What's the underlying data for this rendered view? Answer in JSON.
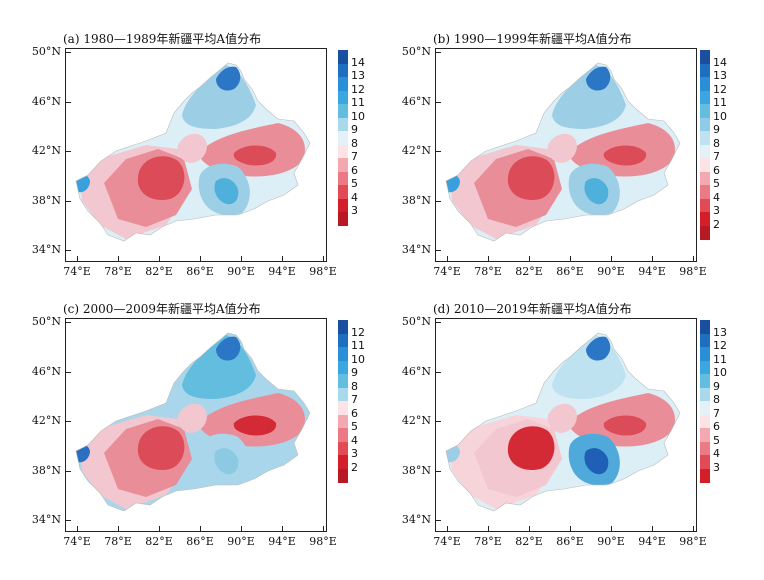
{
  "panels": [
    {
      "title": "(a) 1980—1989年新疆平均A值分布",
      "colorbar": {
        "labels": [
          "14",
          "13",
          "12",
          "11",
          "10",
          "9",
          "8",
          "7",
          "6",
          "5",
          "4",
          "3"
        ],
        "colors": [
          "#1a4fa0",
          "#1f6fc0",
          "#2a8fd6",
          "#3aa7e0",
          "#62bddf",
          "#a9d9ec",
          "#e4f1f8",
          "#fde2e6",
          "#f4a9b0",
          "#ea7b85",
          "#e24b56",
          "#d41e2a",
          "#b81a25"
        ]
      },
      "map": {
        "bg": "#dceef6",
        "blobs": [
          {
            "c": "#f2c7cf",
            "shape": "w"
          },
          {
            "c": "#e98e98",
            "shape": "wc"
          },
          {
            "c": "#dc4b58",
            "shape": "wcore"
          },
          {
            "c": "#e98e98",
            "shape": "e"
          },
          {
            "c": "#dc4b58",
            "shape": "ecore"
          },
          {
            "c": "#9ccfe6",
            "shape": "n"
          },
          {
            "c": "#2b77c6",
            "shape": "ncore"
          },
          {
            "c": "#9ccfe6",
            "shape": "s"
          },
          {
            "c": "#4fb0db",
            "shape": "score"
          },
          {
            "c": "#f2c7cf",
            "shape": "c"
          },
          {
            "c": "#3aa0dc",
            "shape": "wtip"
          }
        ]
      }
    },
    {
      "title": "(b) 1990—1999年新疆平均A值分布",
      "colorbar": {
        "labels": [
          "14",
          "13",
          "12",
          "11",
          "10",
          "9",
          "8",
          "7",
          "6",
          "5",
          "4",
          "3",
          "2"
        ],
        "colors": [
          "#1a4fa0",
          "#1f6fc0",
          "#2a8fd6",
          "#3aa7e0",
          "#62bddf",
          "#8fcbe6",
          "#bfe2f1",
          "#e4f1f8",
          "#fde2e6",
          "#f4a9b0",
          "#ea7b85",
          "#e24b56",
          "#d41e2a",
          "#b81a25"
        ]
      },
      "map": {
        "bg": "#dceef6",
        "blobs": [
          {
            "c": "#f2c7cf",
            "shape": "w"
          },
          {
            "c": "#e98e98",
            "shape": "wc"
          },
          {
            "c": "#dc4b58",
            "shape": "wcore"
          },
          {
            "c": "#e98e98",
            "shape": "e"
          },
          {
            "c": "#dc4b58",
            "shape": "ecore"
          },
          {
            "c": "#9ccfe6",
            "shape": "n"
          },
          {
            "c": "#2b77c6",
            "shape": "ncore"
          },
          {
            "c": "#9ccfe6",
            "shape": "s"
          },
          {
            "c": "#4fb0db",
            "shape": "score"
          },
          {
            "c": "#f2c7cf",
            "shape": "c"
          },
          {
            "c": "#3aa0dc",
            "shape": "wtip"
          }
        ]
      }
    },
    {
      "title": "(c) 2000—2009年新疆平均A值分布",
      "colorbar": {
        "labels": [
          "12",
          "11",
          "10",
          "9",
          "8",
          "7",
          "6",
          "5",
          "4",
          "3",
          "2"
        ],
        "colors": [
          "#1a4fa0",
          "#1f6fc0",
          "#2a8fd6",
          "#3aa7e0",
          "#62bddf",
          "#a9d9ec",
          "#fde2e6",
          "#f4a9b0",
          "#ea7b85",
          "#e24b56",
          "#d41e2a",
          "#b81a25"
        ]
      },
      "map": {
        "bg": "#a9d6ea",
        "blobs": [
          {
            "c": "#f2c7cf",
            "shape": "w"
          },
          {
            "c": "#e98e98",
            "shape": "wc"
          },
          {
            "c": "#dc4b58",
            "shape": "wcore"
          },
          {
            "c": "#e98e98",
            "shape": "e"
          },
          {
            "c": "#d42a35",
            "shape": "ecore"
          },
          {
            "c": "#62bddf",
            "shape": "n"
          },
          {
            "c": "#2b77c6",
            "shape": "ncore"
          },
          {
            "c": "#a9d6ea",
            "shape": "s"
          },
          {
            "c": "#8ccae4",
            "shape": "score"
          },
          {
            "c": "#f2c7cf",
            "shape": "c"
          },
          {
            "c": "#2b6fc0",
            "shape": "wtip"
          }
        ]
      }
    },
    {
      "title": "(d) 2010—2019年新疆平均A值分布",
      "colorbar": {
        "labels": [
          "13",
          "12",
          "11",
          "10",
          "9",
          "8",
          "7",
          "6",
          "5",
          "4",
          "3"
        ],
        "colors": [
          "#1a4fa0",
          "#1f6fc0",
          "#2a8fd6",
          "#3aa7e0",
          "#62bddf",
          "#a9d9ec",
          "#e4f1f8",
          "#fde2e6",
          "#f4a9b0",
          "#ea7b85",
          "#e24b56",
          "#d41e2a"
        ]
      },
      "map": {
        "bg": "#dceef6",
        "blobs": [
          {
            "c": "#f7d3da",
            "shape": "w"
          },
          {
            "c": "#f2c7cf",
            "shape": "wc"
          },
          {
            "c": "#d42a35",
            "shape": "wcore"
          },
          {
            "c": "#e98e98",
            "shape": "e"
          },
          {
            "c": "#dc4b58",
            "shape": "ecore"
          },
          {
            "c": "#bfe2f1",
            "shape": "n"
          },
          {
            "c": "#2b77c6",
            "shape": "ncore"
          },
          {
            "c": "#4fa9db",
            "shape": "s"
          },
          {
            "c": "#1f5fb5",
            "shape": "score"
          },
          {
            "c": "#f2c7cf",
            "shape": "c"
          },
          {
            "c": "#9ccfe6",
            "shape": "wtip"
          }
        ]
      }
    }
  ],
  "axes": {
    "lat_labels": [
      "50°N",
      "46°N",
      "42°N",
      "38°N",
      "34°N"
    ],
    "lon_labels": [
      "74°E",
      "78°E",
      "82°E",
      "86°E",
      "90°E",
      "94°E",
      "98°E"
    ]
  }
}
